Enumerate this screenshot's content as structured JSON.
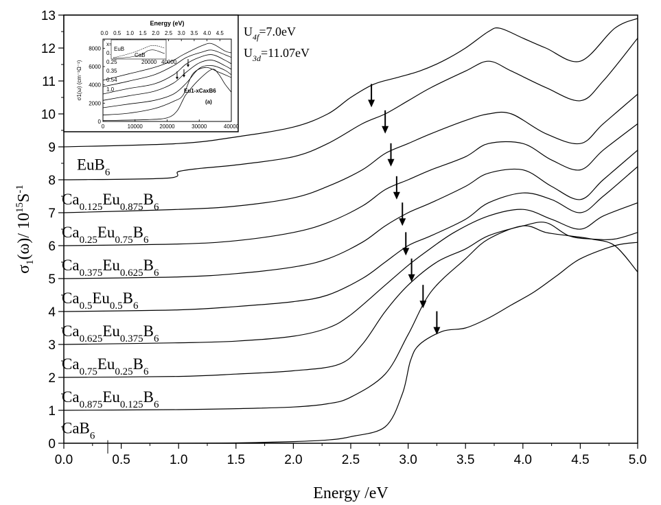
{
  "chart_data": {
    "type": "line",
    "title": "",
    "xlabel": "Energy /eV",
    "ylabel_parts": {
      "main": "σ",
      "sub": "1",
      "rest": "(ω)/ 10",
      "sup1": "15",
      "unit": "S",
      "sup2": "-1"
    },
    "xlim": [
      0,
      5
    ],
    "ylim": [
      0,
      13
    ],
    "xticks": [
      "0.0",
      "0.5",
      "1.0",
      "1.5",
      "2.0",
      "2.5",
      "3.0",
      "3.5",
      "4.0",
      "4.5",
      "5.0"
    ],
    "yticks": [
      "0",
      "1",
      "2",
      "3",
      "4",
      "5",
      "6",
      "7",
      "8",
      "9",
      "10",
      "11",
      "12",
      "13"
    ],
    "annotations": [
      {
        "base": "U",
        "sub": "4f",
        "rest": "=7.0eV"
      },
      {
        "base": "U",
        "sub": "3d",
        "rest": "=11.07eV"
      }
    ],
    "series": [
      {
        "label_parts": [
          [
            "Ca",
            ""
          ],
          [
            "",
            "0.875"
          ],
          [
            "Eu",
            ""
          ],
          [
            "",
            "0.125"
          ],
          [
            "B",
            ""
          ],
          [
            "",
            "6"
          ]
        ],
        "label_y": 1.25,
        "x": [
          0.0,
          1.0,
          1.5,
          2.0,
          2.3,
          2.5,
          2.8,
          3.0,
          3.2,
          3.5,
          3.7,
          4.0,
          4.2,
          4.4,
          4.6,
          4.8,
          5.0
        ],
        "y": [
          1.0,
          1.02,
          1.05,
          1.1,
          1.2,
          1.4,
          2.1,
          3.3,
          4.6,
          5.6,
          6.2,
          6.6,
          6.4,
          6.3,
          6.2,
          6.0,
          5.2
        ]
      },
      {
        "label_parts": [
          [
            "Ca",
            ""
          ],
          [
            "",
            "0.75"
          ],
          [
            "Eu",
            ""
          ],
          [
            "",
            "0.25"
          ],
          [
            "B",
            ""
          ],
          [
            "",
            "6"
          ]
        ],
        "label_y": 2.25,
        "x": [
          0.0,
          1.0,
          1.5,
          2.0,
          2.4,
          2.6,
          2.8,
          3.0,
          3.25,
          3.5,
          3.7,
          4.0,
          4.2,
          4.4,
          4.6,
          4.8,
          5.0
        ],
        "y": [
          2.0,
          2.03,
          2.1,
          2.2,
          2.4,
          3.0,
          4.0,
          4.8,
          5.5,
          5.9,
          6.3,
          6.6,
          6.7,
          6.3,
          6.2,
          6.2,
          6.4
        ]
      },
      {
        "label_parts": [
          [
            "Ca",
            ""
          ],
          [
            "",
            "0.625"
          ],
          [
            "Eu",
            ""
          ],
          [
            "",
            "0.375"
          ],
          [
            "B",
            ""
          ],
          [
            "",
            "6"
          ]
        ],
        "label_y": 3.25,
        "x": [
          0.0,
          1.0,
          1.5,
          2.0,
          2.3,
          2.5,
          2.8,
          3.0,
          3.15,
          3.4,
          3.7,
          4.0,
          4.25,
          4.5,
          4.7,
          5.0
        ],
        "y": [
          3.0,
          3.05,
          3.1,
          3.25,
          3.5,
          3.9,
          4.8,
          5.4,
          5.8,
          6.4,
          6.9,
          7.1,
          6.8,
          6.5,
          6.9,
          7.3
        ]
      },
      {
        "label_parts": [
          [
            "Ca",
            ""
          ],
          [
            "",
            "0.5"
          ],
          [
            "Eu",
            ""
          ],
          [
            "",
            "0.5"
          ],
          [
            "B",
            ""
          ],
          [
            "",
            "6"
          ]
        ],
        "label_y": 4.25,
        "x": [
          0.0,
          1.0,
          1.5,
          2.0,
          2.3,
          2.6,
          2.8,
          3.0,
          3.2,
          3.5,
          3.7,
          4.0,
          4.25,
          4.5,
          4.7,
          5.0
        ],
        "y": [
          4.0,
          4.05,
          4.15,
          4.3,
          4.5,
          5.0,
          5.5,
          6.0,
          6.3,
          6.8,
          7.3,
          7.6,
          7.4,
          7.0,
          7.5,
          8.4
        ]
      },
      {
        "label_parts": [
          [
            "Ca",
            ""
          ],
          [
            "",
            "0.375"
          ],
          [
            "Eu",
            ""
          ],
          [
            "",
            "0.625"
          ],
          [
            "B",
            ""
          ],
          [
            "",
            "6"
          ]
        ],
        "label_y": 5.25,
        "x": [
          0.0,
          1.0,
          1.5,
          2.0,
          2.3,
          2.6,
          2.8,
          3.0,
          3.2,
          3.5,
          3.7,
          4.0,
          4.25,
          4.5,
          4.7,
          5.0
        ],
        "y": [
          5.0,
          5.05,
          5.15,
          5.35,
          5.6,
          6.1,
          6.6,
          7.0,
          7.3,
          7.8,
          8.2,
          8.3,
          7.8,
          7.4,
          8.0,
          8.9
        ]
      },
      {
        "label_parts": [
          [
            "Ca",
            ""
          ],
          [
            "",
            "0.25"
          ],
          [
            "Eu",
            ""
          ],
          [
            "",
            "0.75"
          ],
          [
            "B",
            ""
          ],
          [
            "",
            "6"
          ]
        ],
        "label_y": 6.25,
        "x": [
          0.0,
          1.0,
          1.5,
          2.0,
          2.3,
          2.6,
          2.8,
          3.0,
          3.2,
          3.5,
          3.7,
          4.0,
          4.25,
          4.5,
          4.7,
          5.0
        ],
        "y": [
          6.0,
          6.05,
          6.15,
          6.4,
          6.7,
          7.2,
          7.7,
          8.0,
          8.3,
          8.7,
          9.1,
          9.1,
          8.6,
          8.3,
          8.9,
          9.7
        ]
      },
      {
        "label_parts": [
          [
            "Ca",
            ""
          ],
          [
            "",
            "0.125"
          ],
          [
            "Eu",
            ""
          ],
          [
            "",
            "0.875"
          ],
          [
            "B",
            ""
          ],
          [
            "",
            "6"
          ]
        ],
        "label_y": 7.25,
        "x": [
          0.0,
          1.0,
          1.5,
          2.0,
          2.3,
          2.6,
          2.8,
          3.0,
          3.2,
          3.5,
          3.7,
          3.9,
          4.2,
          4.5,
          4.7,
          5.0
        ],
        "y": [
          7.0,
          7.1,
          7.2,
          7.45,
          7.8,
          8.3,
          8.8,
          9.1,
          9.4,
          9.8,
          10.0,
          10.0,
          9.4,
          9.1,
          9.7,
          10.6
        ]
      },
      {
        "label_parts": [
          [
            "EuB",
            ""
          ],
          [
            "",
            "6"
          ]
        ],
        "label_y": 8.3,
        "x": [
          0.0,
          0.9,
          1.0,
          1.2,
          1.5,
          2.0,
          2.3,
          2.6,
          2.8,
          3.0,
          3.2,
          3.5,
          3.7,
          3.9,
          4.2,
          4.5,
          4.7,
          5.0
        ],
        "y": [
          8.0,
          8.05,
          8.25,
          8.35,
          8.45,
          8.7,
          9.1,
          9.7,
          10.0,
          10.4,
          10.8,
          11.3,
          11.6,
          11.3,
          10.8,
          10.4,
          11.0,
          12.3
        ]
      },
      {
        "label_parts": [
          [
            "CaB",
            ""
          ],
          [
            "",
            "6"
          ]
        ],
        "label_y": 0.3,
        "x": [
          0.0,
          1.0,
          1.5,
          2.0,
          2.3,
          2.5,
          2.8,
          2.95,
          3.02,
          3.1,
          3.3,
          3.5,
          3.7,
          3.9,
          4.1,
          4.3,
          4.5,
          4.8,
          5.0
        ],
        "y": [
          0.0,
          0.0,
          0.01,
          0.05,
          0.1,
          0.2,
          0.5,
          1.5,
          2.5,
          3.0,
          3.4,
          3.5,
          3.8,
          4.2,
          4.6,
          5.1,
          5.6,
          6.0,
          6.1
        ]
      },
      {
        "label_parts": [],
        "label_y": 0,
        "x": [
          0.0,
          1.0,
          1.5,
          2.0,
          2.3,
          2.5,
          2.7,
          2.9,
          3.1,
          3.3,
          3.5,
          3.7,
          3.8,
          4.0,
          4.2,
          4.5,
          4.8,
          5.0
        ],
        "y": [
          9.0,
          9.1,
          9.3,
          9.6,
          10.0,
          10.5,
          10.9,
          11.1,
          11.3,
          11.6,
          12.0,
          12.5,
          12.6,
          12.3,
          12.0,
          11.6,
          12.6,
          12.9
        ]
      }
    ],
    "arrows": [
      {
        "x": 2.68,
        "y": 10.2
      },
      {
        "x": 2.8,
        "y": 9.4
      },
      {
        "x": 2.85,
        "y": 8.4
      },
      {
        "x": 2.9,
        "y": 7.4
      },
      {
        "x": 2.95,
        "y": 6.6
      },
      {
        "x": 2.98,
        "y": 5.7
      },
      {
        "x": 3.03,
        "y": 4.9
      },
      {
        "x": 3.13,
        "y": 4.1
      },
      {
        "x": 3.25,
        "y": 3.3
      }
    ],
    "inset": {
      "top_axis_title": "Energy (eV)",
      "top_ticks": [
        "0.0",
        "0.5",
        "1.0",
        "1.5",
        "2.0",
        "2.5",
        "3.0",
        "3.5",
        "4.0",
        "4.5"
      ],
      "bottom_ticks": [
        "0",
        "10000",
        "20000",
        "30000",
        "40000"
      ],
      "y_ticks": [
        "0",
        "2000",
        "4000",
        "6000",
        "8000"
      ],
      "ylabel": "σ1(ω) (cm⁻¹Ω⁻¹)",
      "x_values": [
        "x=0.0",
        "0.13",
        "0.25",
        "0.35",
        "0.54",
        "1.0"
      ],
      "label_main": "Eu1-xCaxB6",
      "label_panel": "(a)",
      "mini_labels": [
        "EuB",
        "CaB"
      ],
      "mini_ticks": [
        "20000",
        "40000"
      ]
    }
  }
}
